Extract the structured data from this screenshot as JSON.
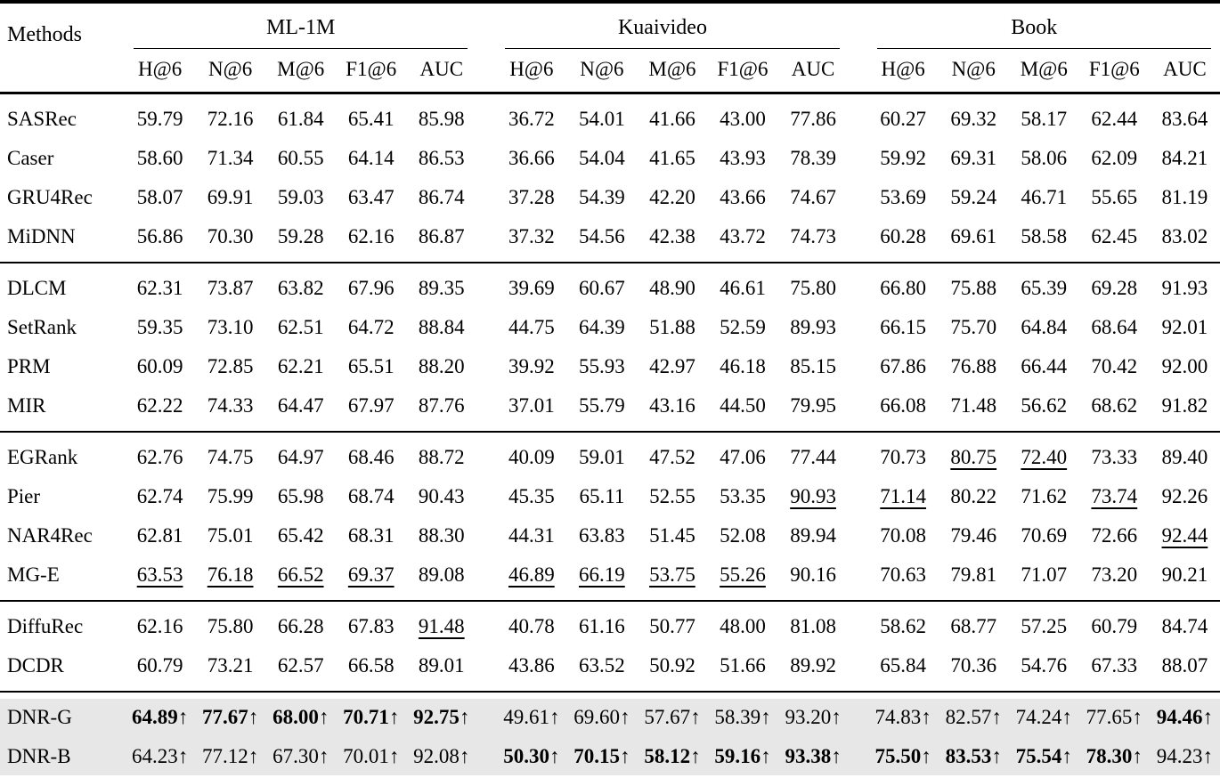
{
  "table": {
    "row_header_label": "Methods",
    "group_headers": [
      {
        "label": "ML-1M"
      },
      {
        "label": "Kuaivideo"
      },
      {
        "label": "Book"
      }
    ],
    "metric_headers": [
      "H@6",
      "N@6",
      "M@6",
      "F1@6",
      "AUC"
    ],
    "up_arrow": "↑",
    "highlight_color": "#e7e7e7",
    "groups": [
      {
        "highlight": false,
        "rows": [
          {
            "method": "SASRec",
            "values": [
              "59.79",
              "72.16",
              "61.84",
              "65.41",
              "85.98",
              "36.72",
              "54.01",
              "41.66",
              "43.00",
              "77.86",
              "60.27",
              "69.32",
              "58.17",
              "62.44",
              "83.64"
            ],
            "bold": [],
            "underline": [],
            "arrow": false
          },
          {
            "method": "Caser",
            "values": [
              "58.60",
              "71.34",
              "60.55",
              "64.14",
              "86.53",
              "36.66",
              "54.04",
              "41.65",
              "43.93",
              "78.39",
              "59.92",
              "69.31",
              "58.06",
              "62.09",
              "84.21"
            ],
            "bold": [],
            "underline": [],
            "arrow": false
          },
          {
            "method": "GRU4Rec",
            "values": [
              "58.07",
              "69.91",
              "59.03",
              "63.47",
              "86.74",
              "37.28",
              "54.39",
              "42.20",
              "43.66",
              "74.67",
              "53.69",
              "59.24",
              "46.71",
              "55.65",
              "81.19"
            ],
            "bold": [],
            "underline": [],
            "arrow": false
          },
          {
            "method": "MiDNN",
            "values": [
              "56.86",
              "70.30",
              "59.28",
              "62.16",
              "86.87",
              "37.32",
              "54.56",
              "42.38",
              "43.72",
              "74.73",
              "60.28",
              "69.61",
              "58.58",
              "62.45",
              "83.02"
            ],
            "bold": [],
            "underline": [],
            "arrow": false
          }
        ]
      },
      {
        "highlight": false,
        "rows": [
          {
            "method": "DLCM",
            "values": [
              "62.31",
              "73.87",
              "63.82",
              "67.96",
              "89.35",
              "39.69",
              "60.67",
              "48.90",
              "46.61",
              "75.80",
              "66.80",
              "75.88",
              "65.39",
              "69.28",
              "91.93"
            ],
            "bold": [],
            "underline": [],
            "arrow": false
          },
          {
            "method": "SetRank",
            "values": [
              "59.35",
              "73.10",
              "62.51",
              "64.72",
              "88.84",
              "44.75",
              "64.39",
              "51.88",
              "52.59",
              "89.93",
              "66.15",
              "75.70",
              "64.84",
              "68.64",
              "92.01"
            ],
            "bold": [],
            "underline": [],
            "arrow": false
          },
          {
            "method": "PRM",
            "values": [
              "60.09",
              "72.85",
              "62.21",
              "65.51",
              "88.20",
              "39.92",
              "55.93",
              "42.97",
              "46.18",
              "85.15",
              "67.86",
              "76.88",
              "66.44",
              "70.42",
              "92.00"
            ],
            "bold": [],
            "underline": [],
            "arrow": false
          },
          {
            "method": "MIR",
            "values": [
              "62.22",
              "74.33",
              "64.47",
              "67.97",
              "87.76",
              "37.01",
              "55.79",
              "43.16",
              "44.50",
              "79.95",
              "66.08",
              "71.48",
              "56.62",
              "68.62",
              "91.82"
            ],
            "bold": [],
            "underline": [],
            "arrow": false
          }
        ]
      },
      {
        "highlight": false,
        "rows": [
          {
            "method": "EGRank",
            "values": [
              "62.76",
              "74.75",
              "64.97",
              "68.46",
              "88.72",
              "40.09",
              "59.01",
              "47.52",
              "47.06",
              "77.44",
              "70.73",
              "80.75",
              "72.40",
              "73.33",
              "89.40"
            ],
            "bold": [],
            "underline": [
              11,
              12
            ],
            "arrow": false
          },
          {
            "method": "Pier",
            "values": [
              "62.74",
              "75.99",
              "65.98",
              "68.74",
              "90.43",
              "45.35",
              "65.11",
              "52.55",
              "53.35",
              "90.93",
              "71.14",
              "80.22",
              "71.62",
              "73.74",
              "92.26"
            ],
            "bold": [],
            "underline": [
              9,
              10,
              13
            ],
            "arrow": false
          },
          {
            "method": "NAR4Rec",
            "values": [
              "62.81",
              "75.01",
              "65.42",
              "68.31",
              "88.30",
              "44.31",
              "63.83",
              "51.45",
              "52.08",
              "89.94",
              "70.08",
              "79.46",
              "70.69",
              "72.66",
              "92.44"
            ],
            "bold": [],
            "underline": [
              14
            ],
            "arrow": false
          },
          {
            "method": "MG-E",
            "values": [
              "63.53",
              "76.18",
              "66.52",
              "69.37",
              "89.08",
              "46.89",
              "66.19",
              "53.75",
              "55.26",
              "90.16",
              "70.63",
              "79.81",
              "71.07",
              "73.20",
              "90.21"
            ],
            "bold": [],
            "underline": [
              0,
              1,
              2,
              3,
              5,
              6,
              7,
              8
            ],
            "arrow": false
          }
        ]
      },
      {
        "highlight": false,
        "rows": [
          {
            "method": "DiffuRec",
            "values": [
              "62.16",
              "75.80",
              "66.28",
              "67.83",
              "91.48",
              "40.78",
              "61.16",
              "50.77",
              "48.00",
              "81.08",
              "58.62",
              "68.77",
              "57.25",
              "60.79",
              "84.74"
            ],
            "bold": [],
            "underline": [
              4
            ],
            "arrow": false
          },
          {
            "method": "DCDR",
            "values": [
              "60.79",
              "73.21",
              "62.57",
              "66.58",
              "89.01",
              "43.86",
              "63.52",
              "50.92",
              "51.66",
              "89.92",
              "65.84",
              "70.36",
              "54.76",
              "67.33",
              "88.07"
            ],
            "bold": [],
            "underline": [],
            "arrow": false
          }
        ]
      },
      {
        "highlight": true,
        "rows": [
          {
            "method": "DNR-G",
            "values": [
              "64.89",
              "77.67",
              "68.00",
              "70.71",
              "92.75",
              "49.61",
              "69.60",
              "57.67",
              "58.39",
              "93.20",
              "74.83",
              "82.57",
              "74.24",
              "77.65",
              "94.46"
            ],
            "bold": [
              0,
              1,
              2,
              3,
              4,
              14
            ],
            "underline": [],
            "arrow": true
          },
          {
            "method": "DNR-B",
            "values": [
              "64.23",
              "77.12",
              "67.30",
              "70.01",
              "92.08",
              "50.30",
              "70.15",
              "58.12",
              "59.16",
              "93.38",
              "75.50",
              "83.53",
              "75.54",
              "78.30",
              "94.23"
            ],
            "bold": [
              5,
              6,
              7,
              8,
              9,
              10,
              11,
              12,
              13
            ],
            "underline": [],
            "arrow": true
          }
        ]
      }
    ]
  }
}
